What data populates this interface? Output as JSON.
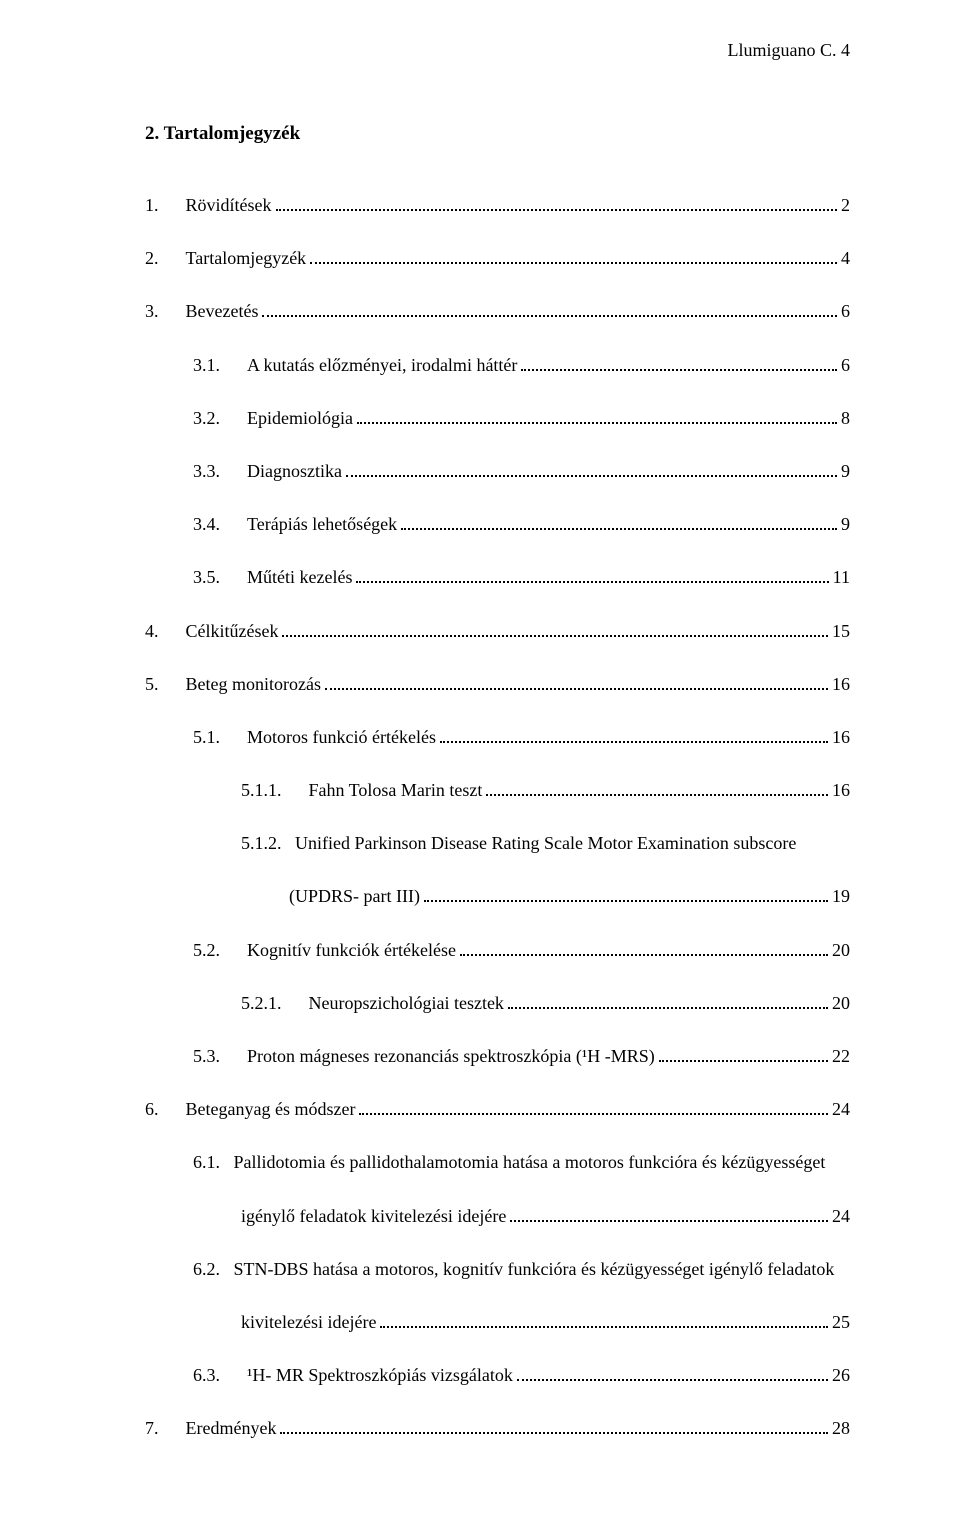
{
  "header": "Llumiguano C.    4",
  "title": "2.    Tartalomjegyzék",
  "toc": [
    {
      "num": "1.",
      "label": "Rövidítések",
      "page": "2",
      "indent": 0
    },
    {
      "num": "2.",
      "label": "Tartalomjegyzék",
      "page": "4",
      "indent": 0
    },
    {
      "num": "3.",
      "label": "Bevezetés",
      "page": "6",
      "indent": 0
    },
    {
      "num": "3.1.",
      "label": "A kutatás előzményei, irodalmi háttér",
      "page": "6",
      "indent": 1
    },
    {
      "num": "3.2.",
      "label": "Epidemiológia",
      "page": "8",
      "indent": 1
    },
    {
      "num": "3.3.",
      "label": "Diagnosztika",
      "page": "9",
      "indent": 1
    },
    {
      "num": "3.4.",
      "label": "Terápiás lehetőségek",
      "page": "9",
      "indent": 1
    },
    {
      "num": "3.5.",
      "label": "Műtéti kezelés",
      "page": "11",
      "indent": 1
    },
    {
      "num": "4.",
      "label": "Célkitűzések",
      "page": "15",
      "indent": 0
    },
    {
      "num": "5.",
      "label": "Beteg monitorozás",
      "page": "16",
      "indent": 0
    },
    {
      "num": "5.1.",
      "label": "Motoros funkció értékelés",
      "page": "16",
      "indent": 1
    },
    {
      "num": "5.1.1.",
      "label": "Fahn Tolosa Marin teszt",
      "page": "16",
      "indent": 2
    },
    {
      "num": "5.1.2.",
      "label": "Unified Parkinson Disease Rating Scale Motor Examination subscore",
      "label2": "(UPDRS- part III)",
      "page": "19",
      "indent": 2,
      "multi": true
    },
    {
      "num": "5.2.",
      "label": "Kognitív funkciók értékelése",
      "page": "20",
      "indent": 1
    },
    {
      "num": "5.2.1.",
      "label": "Neuropszichológiai tesztek",
      "page": "20",
      "indent": 2
    },
    {
      "num": "5.3.",
      "label": "Proton mágneses rezonanciás spektroszkópia (¹H -MRS)",
      "page": "22",
      "indent": 1
    },
    {
      "num": "6.",
      "label": "Beteganyag és módszer",
      "page": "24",
      "indent": 0
    },
    {
      "num": "6.1.",
      "label": "Pallidotomia és pallidothalamotomia hatása a motoros funkcióra és kézügyességet",
      "label2": "igénylő feladatok kivitelezési idejére",
      "page": "24",
      "indent": 1,
      "multi": true
    },
    {
      "num": "6.2.",
      "label": "STN-DBS hatása a motoros, kognitív funkcióra és kézügyességet igénylő feladatok",
      "label2": "kivitelezési idejére",
      "page": "25",
      "indent": 1,
      "multi": true
    },
    {
      "num": "6.3.",
      "label": "¹H- MR Spektroszkópiás vizsgálatok",
      "page": "26",
      "indent": 1
    },
    {
      "num": "7.",
      "label": "Eredmények",
      "page": "28",
      "indent": 0
    }
  ]
}
